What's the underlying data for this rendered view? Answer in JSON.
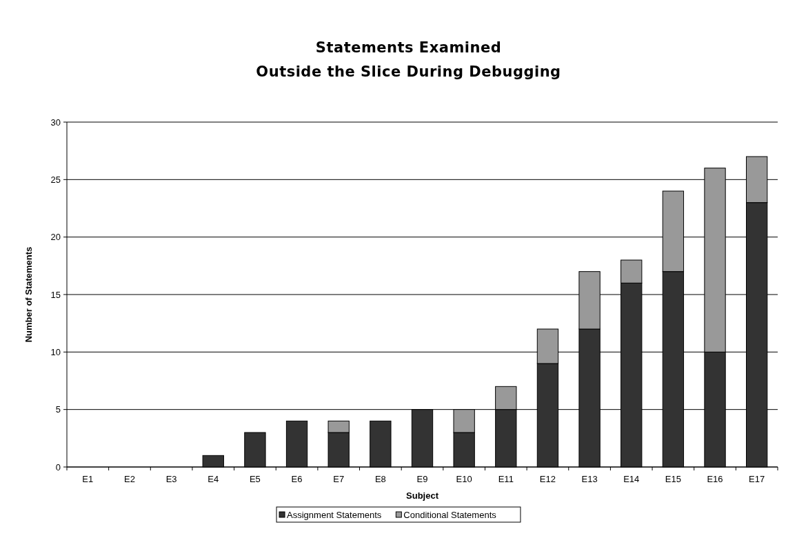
{
  "chart_data": {
    "type": "bar",
    "title": "Statements Examined\nOutside the Slice During Debugging",
    "xlabel": "Subject",
    "ylabel": "Number of Statements",
    "categories": [
      "E1",
      "E2",
      "E3",
      "E4",
      "E5",
      "E6",
      "E7",
      "E8",
      "E9",
      "E10",
      "E11",
      "E12",
      "E13",
      "E14",
      "E15",
      "E16",
      "E17"
    ],
    "series": [
      {
        "name": "Assignment Statements",
        "color": "#333333",
        "values": [
          0,
          0,
          0,
          1,
          3,
          4,
          3,
          4,
          5,
          3,
          5,
          9,
          12,
          16,
          17,
          10,
          23
        ]
      },
      {
        "name": "Conditional Statements",
        "color": "#999999",
        "values": [
          0,
          0,
          0,
          0,
          0,
          0,
          1,
          0,
          0,
          2,
          2,
          3,
          5,
          2,
          7,
          16,
          4
        ]
      }
    ],
    "stacked": true,
    "ylim": [
      0,
      30
    ],
    "yticks": [
      0,
      5,
      10,
      15,
      20,
      25,
      30
    ],
    "grid": "y",
    "legend": "bottom"
  }
}
